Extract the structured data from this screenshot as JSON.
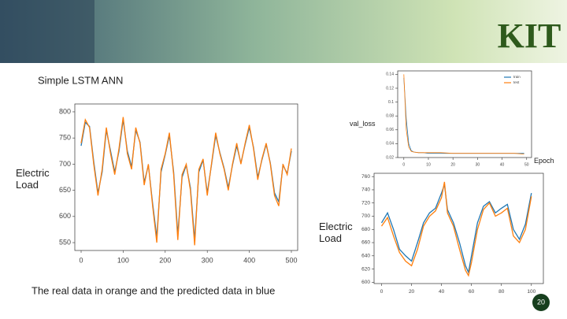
{
  "slide": {
    "title": "Simple  LSTM  ANN",
    "caption": "The real data in orange  and the predicted data in blue",
    "page": "20",
    "logo": "KIT"
  },
  "chart_data": [
    {
      "type": "line",
      "ylabel": "Electric Load",
      "x": [
        0,
        10,
        20,
        30,
        40,
        50,
        60,
        70,
        80,
        90,
        100,
        110,
        120,
        130,
        140,
        150,
        160,
        170,
        180,
        190,
        200,
        210,
        220,
        230,
        240,
        250,
        260,
        270,
        280,
        290,
        300,
        310,
        320,
        330,
        340,
        350,
        360,
        370,
        380,
        390,
        400,
        410,
        420,
        430,
        440,
        450,
        460,
        470,
        480,
        490,
        500
      ],
      "series": [
        {
          "name": "predicted",
          "color": "#1f77b4",
          "values": [
            735,
            780,
            772,
            705,
            645,
            685,
            765,
            725,
            685,
            725,
            785,
            725,
            695,
            765,
            742,
            665,
            698,
            625,
            560,
            685,
            718,
            755,
            685,
            565,
            675,
            698,
            655,
            555,
            685,
            708,
            645,
            698,
            755,
            722,
            692,
            655,
            698,
            735,
            702,
            738,
            770,
            732,
            675,
            708,
            738,
            702,
            645,
            628,
            698,
            682,
            725
          ]
        },
        {
          "name": "real",
          "color": "#ff7f0e",
          "values": [
            740,
            785,
            770,
            700,
            640,
            690,
            770,
            720,
            680,
            730,
            790,
            720,
            690,
            770,
            740,
            660,
            700,
            620,
            550,
            690,
            720,
            760,
            680,
            555,
            680,
            700,
            650,
            545,
            690,
            710,
            640,
            700,
            760,
            720,
            690,
            650,
            700,
            740,
            700,
            740,
            775,
            730,
            670,
            710,
            740,
            700,
            640,
            620,
            700,
            680,
            730
          ]
        }
      ],
      "xlim": [
        -15,
        515
      ],
      "ylim": [
        535,
        815
      ],
      "xticks": [
        0,
        100,
        200,
        300,
        400,
        500
      ],
      "yticks": [
        800,
        750,
        700,
        650,
        600,
        550
      ]
    },
    {
      "type": "line",
      "ylabel": "val_loss",
      "xlabel": "Epoch",
      "legend": "upper right",
      "x": [
        0,
        1,
        2,
        3,
        4,
        6,
        8,
        10,
        15,
        20,
        25,
        30,
        35,
        40,
        45,
        49
      ],
      "series": [
        {
          "name": "train",
          "color": "#1f77b4",
          "values": [
            0.135,
            0.075,
            0.04,
            0.03,
            0.028,
            0.027,
            0.027,
            0.026,
            0.026,
            0.026,
            0.026,
            0.026,
            0.026,
            0.026,
            0.026,
            0.026
          ]
        },
        {
          "name": "test",
          "color": "#ff7f0e",
          "values": [
            0.14,
            0.06,
            0.035,
            0.029,
            0.028,
            0.027,
            0.027,
            0.027,
            0.027,
            0.026,
            0.026,
            0.026,
            0.026,
            0.026,
            0.026,
            0.025
          ]
        }
      ],
      "xlim": [
        -2.5,
        52
      ],
      "ylim": [
        0.02,
        0.145
      ],
      "xticks": [
        0,
        10,
        20,
        30,
        40,
        50
      ],
      "yticks": [
        0.14,
        0.12,
        0.1,
        0.08,
        0.06,
        0.04,
        0.02
      ]
    },
    {
      "type": "line",
      "ylabel": "Electric Load",
      "x": [
        0,
        4,
        8,
        12,
        16,
        20,
        24,
        28,
        32,
        36,
        40,
        42,
        44,
        48,
        52,
        56,
        58,
        60,
        64,
        68,
        72,
        76,
        80,
        84,
        88,
        92,
        96,
        100
      ],
      "series": [
        {
          "name": "predicted",
          "color": "#1f77b4",
          "values": [
            690,
            705,
            680,
            650,
            640,
            632,
            660,
            690,
            705,
            712,
            735,
            748,
            710,
            690,
            660,
            625,
            615,
            640,
            690,
            715,
            722,
            705,
            712,
            718,
            680,
            665,
            688,
            735
          ]
        },
        {
          "name": "real",
          "color": "#ff7f0e",
          "values": [
            685,
            698,
            670,
            645,
            632,
            625,
            650,
            685,
            700,
            708,
            728,
            752,
            705,
            685,
            650,
            618,
            610,
            630,
            680,
            710,
            720,
            700,
            705,
            712,
            670,
            660,
            680,
            730
          ]
        }
      ],
      "xlim": [
        -5,
        108
      ],
      "ylim": [
        598,
        765
      ],
      "xticks": [
        0,
        20,
        40,
        60,
        80,
        100
      ],
      "yticks": [
        760,
        740,
        720,
        700,
        680,
        660,
        640,
        620,
        600
      ]
    }
  ]
}
